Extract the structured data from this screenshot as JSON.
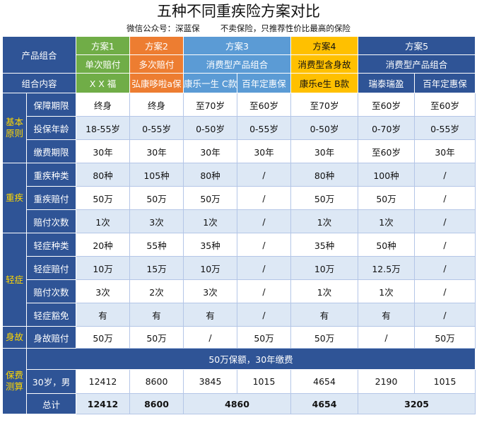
{
  "title": "五种不同重疾险方案对比",
  "subtitle": "微信公众号：深蓝保        不卖保险，只推荐性价比最高的保险",
  "header": {
    "product_group": "产品组合",
    "plans": [
      "方案1",
      "方案2",
      "方案3",
      "方案4",
      "方案5"
    ],
    "plan_types": [
      "单次赔付",
      "多次赔付",
      "消费型产品组合",
      "消费型含身故",
      "消费型产品组合"
    ],
    "group_content": "组合内容",
    "products": [
      "X X 福",
      "弘康哆啦a保",
      "康乐一生 C款",
      "百年定惠保",
      "康乐e生 B款",
      "瑞泰瑞盈",
      "百年定惠保"
    ]
  },
  "sections": {
    "basic": "基本原则",
    "critical": "重疾",
    "mild": "轻症",
    "death": "身故",
    "premium": "保费测算"
  },
  "rows": {
    "term": {
      "label": "保障期限",
      "values": [
        "终身",
        "终身",
        "至70岁",
        "至60岁",
        "至70岁",
        "至60岁",
        "至60岁"
      ]
    },
    "age": {
      "label": "投保年龄",
      "values": [
        "18-55岁",
        "0-55岁",
        "0-50岁",
        "0-55岁",
        "0-50岁",
        "0-70岁",
        "0-55岁"
      ]
    },
    "pay": {
      "label": "缴费期限",
      "values": [
        "30年",
        "30年",
        "30年",
        "30年",
        "30年",
        "至60岁",
        "30年"
      ]
    },
    "ci_types": {
      "label": "重疾种类",
      "values": [
        "80种",
        "105种",
        "80种",
        "/",
        "80种",
        "100种",
        "/"
      ]
    },
    "ci_amount": {
      "label": "重疾赔付",
      "values": [
        "50万",
        "50万",
        "50万",
        "/",
        "50万",
        "50万",
        "/"
      ]
    },
    "ci_times": {
      "label": "赔付次数",
      "values": [
        "1次",
        "3次",
        "1次",
        "/",
        "1次",
        "1次",
        "/"
      ]
    },
    "mild_types": {
      "label": "轻症种类",
      "values": [
        "20种",
        "55种",
        "35种",
        "/",
        "35种",
        "50种",
        "/"
      ]
    },
    "mild_amount": {
      "label": "轻症赔付",
      "values": [
        "10万",
        "15万",
        "10万",
        "/",
        "10万",
        "12.5万",
        "/"
      ]
    },
    "mild_times": {
      "label": "赔付次数",
      "values": [
        "3次",
        "2次",
        "3次",
        "/",
        "1次",
        "1次",
        "/"
      ]
    },
    "mild_waiver": {
      "label": "轻症豁免",
      "values": [
        "有",
        "有",
        "有",
        "/",
        "有",
        "有",
        "/"
      ]
    },
    "death": {
      "label": "身故赔付",
      "values": [
        "50万",
        "50万",
        "/",
        "50万",
        "50万",
        "/",
        "50万"
      ]
    }
  },
  "premium_note": "50万保额，30年缴费",
  "premium_row": {
    "label": "30岁，男",
    "values": [
      "12412",
      "8600",
      "3845",
      "1015",
      "4654",
      "2190",
      "1015"
    ]
  },
  "total_row": {
    "label": "总计",
    "values": [
      "12412",
      "8600",
      "4860",
      "4654",
      "3205"
    ]
  }
}
